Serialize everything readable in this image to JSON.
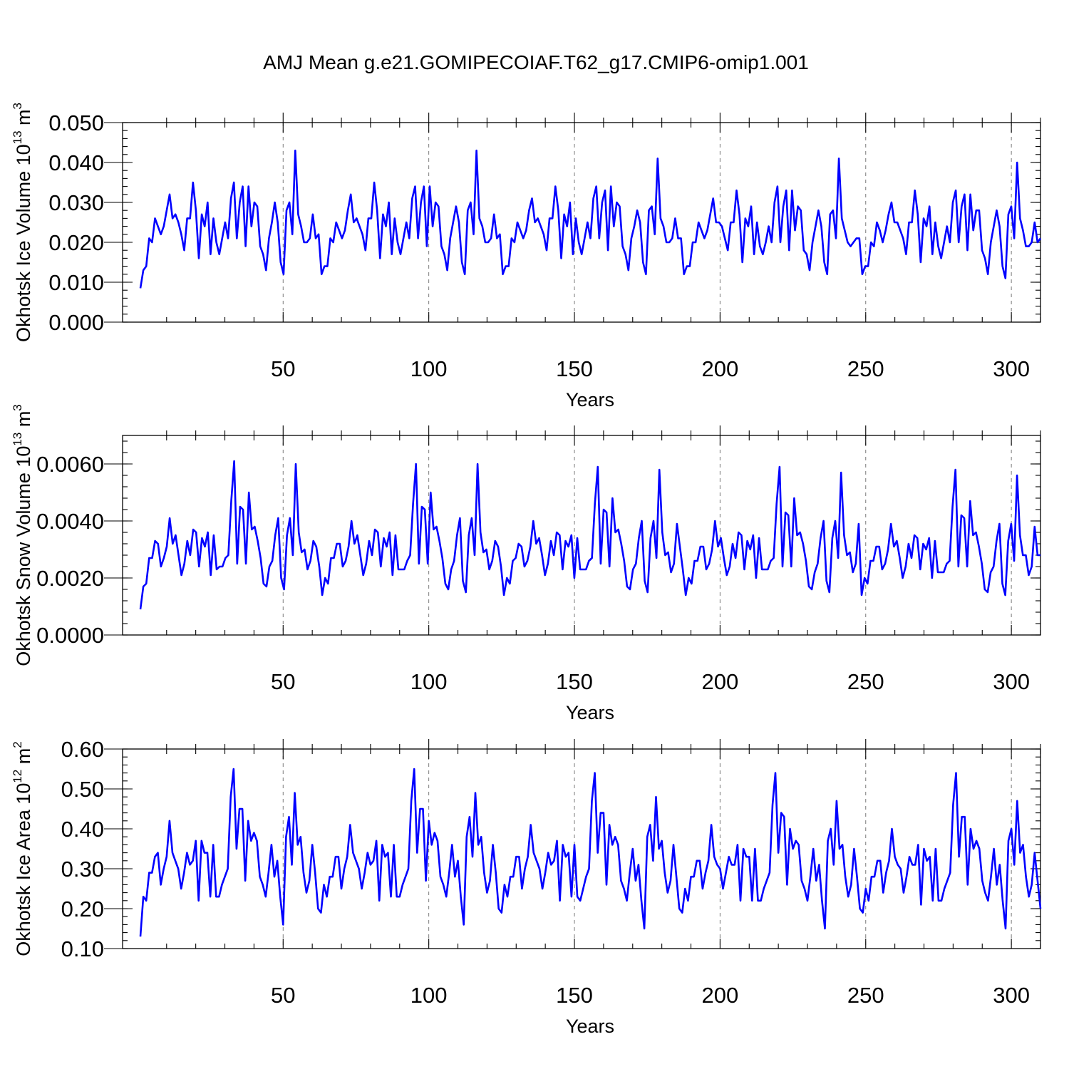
{
  "figure_title": "AMJ Mean g.e21.GOMIPECOIAF.T62_g17.CMIP6-omip1.001",
  "chart_data": [
    {
      "type": "line",
      "ylabel_main": "Okhotsk Ice Volume 10",
      "ylabel_exp": "13",
      "ylabel_unit": " m",
      "ylabel_unit_exp": "3",
      "xlabel": "Years",
      "xlim": [
        1,
        310
      ],
      "ylim": [
        0,
        0.05
      ],
      "x_ticks": [
        "50",
        "100",
        "150",
        "200",
        "250",
        "300"
      ],
      "y_ticks": [
        "0.000",
        "0.010",
        "0.020",
        "0.030",
        "0.040",
        "0.050"
      ],
      "line_color": "#0000ff",
      "values": [
        0.0085,
        0.013,
        0.014,
        0.021,
        0.02,
        0.026,
        0.024,
        0.022,
        0.024,
        0.028,
        0.032,
        0.026,
        0.027,
        0.025,
        0.022,
        0.018,
        0.026,
        0.026,
        0.035,
        0.028,
        0.016,
        0.027,
        0.024,
        0.03,
        0.017,
        0.026,
        0.02,
        0.017,
        0.021,
        0.025,
        0.021,
        0.031,
        0.035,
        0.021,
        0.03,
        0.034,
        0.019,
        0.034,
        0.024,
        0.03,
        0.029,
        0.019,
        0.017,
        0.013,
        0.021,
        0.025,
        0.03,
        0.025,
        0.015,
        0.012,
        0.028,
        0.03,
        0.022,
        0.043,
        0.027,
        0.024,
        0.02,
        0.02,
        0.021,
        0.027,
        0.021,
        0.022,
        0.012,
        0.014,
        0.014,
        0.021,
        0.02,
        0.025,
        0.023,
        0.021,
        0.023,
        0.028,
        0.032,
        0.025,
        0.026,
        0.024,
        0.022,
        0.018,
        0.026,
        0.026,
        0.035,
        0.028,
        0.016,
        0.027,
        0.024,
        0.03,
        0.017,
        0.026,
        0.02,
        0.017,
        0.021,
        0.025,
        0.021,
        0.031,
        0.034,
        0.021,
        0.03,
        0.034,
        0.019,
        0.034,
        0.024,
        0.03,
        0.029,
        0.019,
        0.017,
        0.013,
        0.021,
        0.025,
        0.029,
        0.025,
        0.015,
        0.012,
        0.028,
        0.03,
        0.022,
        0.043,
        0.026,
        0.024,
        0.02,
        0.02,
        0.021,
        0.027,
        0.021,
        0.022,
        0.012,
        0.014,
        0.014,
        0.021,
        0.02,
        0.025,
        0.023,
        0.021,
        0.023,
        0.028,
        0.031,
        0.025,
        0.026,
        0.024,
        0.022,
        0.018,
        0.026,
        0.026,
        0.034,
        0.028,
        0.016,
        0.027,
        0.024,
        0.03,
        0.017,
        0.026,
        0.02,
        0.017,
        0.021,
        0.025,
        0.021,
        0.031,
        0.034,
        0.021,
        0.03,
        0.033,
        0.018,
        0.034,
        0.024,
        0.03,
        0.029,
        0.019,
        0.017,
        0.013,
        0.021,
        0.024,
        0.028,
        0.025,
        0.015,
        0.012,
        0.028,
        0.029,
        0.022,
        0.041,
        0.026,
        0.024,
        0.02,
        0.02,
        0.021,
        0.026,
        0.021,
        0.021,
        0.012,
        0.014,
        0.014,
        0.02,
        0.02,
        0.025,
        0.023,
        0.021,
        0.023,
        0.027,
        0.031,
        0.025,
        0.025,
        0.024,
        0.021,
        0.018,
        0.025,
        0.025,
        0.033,
        0.027,
        0.015,
        0.026,
        0.024,
        0.029,
        0.017,
        0.025,
        0.019,
        0.017,
        0.02,
        0.024,
        0.02,
        0.03,
        0.034,
        0.02,
        0.029,
        0.033,
        0.018,
        0.033,
        0.023,
        0.029,
        0.028,
        0.018,
        0.017,
        0.013,
        0.02,
        0.024,
        0.028,
        0.024,
        0.015,
        0.012,
        0.027,
        0.028,
        0.021,
        0.041,
        0.026,
        0.023,
        0.02,
        0.019,
        0.02,
        0.021,
        0.021,
        0.012,
        0.014,
        0.014,
        0.02,
        0.019,
        0.025,
        0.023,
        0.02,
        0.023,
        0.027,
        0.03,
        0.025,
        0.025,
        0.023,
        0.021,
        0.017,
        0.025,
        0.025,
        0.033,
        0.027,
        0.015,
        0.026,
        0.024,
        0.029,
        0.017,
        0.025,
        0.019,
        0.016,
        0.02,
        0.024,
        0.02,
        0.03,
        0.033,
        0.02,
        0.029,
        0.032,
        0.018,
        0.032,
        0.023,
        0.028,
        0.028,
        0.018,
        0.016,
        0.012,
        0.02,
        0.024,
        0.028,
        0.024,
        0.014,
        0.011,
        0.027,
        0.029,
        0.021,
        0.04,
        0.026,
        0.023,
        0.019,
        0.019,
        0.02,
        0.025,
        0.02,
        0.021
      ]
    },
    {
      "type": "line",
      "ylabel_main": "Okhotsk Snow Volume 10",
      "ylabel_exp": "13",
      "ylabel_unit": " m",
      "ylabel_unit_exp": "3",
      "xlabel": "Years",
      "xlim": [
        1,
        310
      ],
      "ylim": [
        0,
        0.007
      ],
      "x_ticks": [
        "50",
        "100",
        "150",
        "200",
        "250",
        "300"
      ],
      "y_ticks": [
        "0.0000",
        "0.0020",
        "0.0040",
        "0.0060"
      ],
      "line_color": "#0000ff",
      "values": [
        0.0009,
        0.0017,
        0.0018,
        0.0027,
        0.0027,
        0.0033,
        0.0032,
        0.0024,
        0.0027,
        0.0031,
        0.0041,
        0.0032,
        0.0035,
        0.0028,
        0.0021,
        0.0025,
        0.0033,
        0.0028,
        0.0037,
        0.0036,
        0.0024,
        0.0034,
        0.0031,
        0.0036,
        0.0021,
        0.0035,
        0.0023,
        0.0024,
        0.0024,
        0.0027,
        0.0028,
        0.0047,
        0.0061,
        0.0025,
        0.0045,
        0.0044,
        0.0025,
        0.005,
        0.0037,
        0.0038,
        0.0033,
        0.0027,
        0.0018,
        0.0017,
        0.0024,
        0.0026,
        0.0035,
        0.0041,
        0.002,
        0.0016,
        0.0035,
        0.0041,
        0.0028,
        0.006,
        0.0036,
        0.0029,
        0.003,
        0.0023,
        0.0026,
        0.0033,
        0.0031,
        0.0024,
        0.0014,
        0.002,
        0.0018,
        0.0027,
        0.0027,
        0.0032,
        0.0032,
        0.0024,
        0.0026,
        0.0031,
        0.004,
        0.0032,
        0.0035,
        0.0028,
        0.0021,
        0.0025,
        0.0033,
        0.0028,
        0.0037,
        0.0036,
        0.0024,
        0.0034,
        0.0031,
        0.0036,
        0.0021,
        0.0035,
        0.0023,
        0.0023,
        0.0023,
        0.0026,
        0.0028,
        0.0046,
        0.006,
        0.0025,
        0.0045,
        0.0044,
        0.0025,
        0.005,
        0.0037,
        0.0038,
        0.0033,
        0.0027,
        0.0018,
        0.0016,
        0.0023,
        0.0026,
        0.0035,
        0.0041,
        0.0019,
        0.0015,
        0.0035,
        0.0041,
        0.0028,
        0.006,
        0.0036,
        0.0029,
        0.003,
        0.0023,
        0.0026,
        0.0033,
        0.0031,
        0.0024,
        0.0014,
        0.002,
        0.0018,
        0.0026,
        0.0027,
        0.0032,
        0.0031,
        0.0024,
        0.0026,
        0.0031,
        0.004,
        0.0032,
        0.0034,
        0.0028,
        0.0021,
        0.0025,
        0.0033,
        0.0028,
        0.0036,
        0.0035,
        0.0023,
        0.0033,
        0.0031,
        0.0035,
        0.002,
        0.0034,
        0.0023,
        0.0023,
        0.0023,
        0.0026,
        0.0027,
        0.0046,
        0.0059,
        0.0025,
        0.0044,
        0.0043,
        0.0024,
        0.0048,
        0.0036,
        0.0037,
        0.0032,
        0.0026,
        0.0017,
        0.0016,
        0.0023,
        0.0025,
        0.0034,
        0.004,
        0.0019,
        0.0015,
        0.0034,
        0.004,
        0.0027,
        0.0058,
        0.0036,
        0.0028,
        0.0029,
        0.0022,
        0.0025,
        0.0039,
        0.0031,
        0.0023,
        0.0014,
        0.002,
        0.0018,
        0.0026,
        0.0026,
        0.0031,
        0.0031,
        0.0023,
        0.0025,
        0.003,
        0.004,
        0.0031,
        0.0034,
        0.0027,
        0.0021,
        0.0024,
        0.0032,
        0.0027,
        0.0036,
        0.0035,
        0.0023,
        0.0033,
        0.003,
        0.0035,
        0.002,
        0.0034,
        0.0023,
        0.0023,
        0.0023,
        0.0026,
        0.0027,
        0.0046,
        0.0059,
        0.0024,
        0.0043,
        0.0042,
        0.0024,
        0.0048,
        0.0035,
        0.0036,
        0.0032,
        0.0026,
        0.0017,
        0.0016,
        0.0022,
        0.0025,
        0.0034,
        0.004,
        0.0019,
        0.0015,
        0.0034,
        0.004,
        0.0027,
        0.0057,
        0.0035,
        0.0028,
        0.0029,
        0.0022,
        0.0025,
        0.0039,
        0.0014,
        0.002,
        0.0018,
        0.0026,
        0.0026,
        0.0031,
        0.0031,
        0.0023,
        0.0025,
        0.003,
        0.0039,
        0.0031,
        0.0033,
        0.0027,
        0.002,
        0.0024,
        0.0032,
        0.0027,
        0.0035,
        0.0034,
        0.0023,
        0.0032,
        0.003,
        0.0034,
        0.002,
        0.0033,
        0.0022,
        0.0022,
        0.0022,
        0.0025,
        0.0026,
        0.0045,
        0.0058,
        0.0024,
        0.0042,
        0.0041,
        0.0024,
        0.0047,
        0.0035,
        0.0036,
        0.0031,
        0.0025,
        0.0016,
        0.0015,
        0.0022,
        0.0024,
        0.0033,
        0.0039,
        0.0018,
        0.0014,
        0.0033,
        0.0039,
        0.0026,
        0.0056,
        0.0035,
        0.0028,
        0.0028,
        0.0021,
        0.0024,
        0.0038,
        0.0028,
        0.0028
      ]
    },
    {
      "type": "line",
      "ylabel_main": "Okhotsk Ice Area 10",
      "ylabel_exp": "12",
      "ylabel_unit": " m",
      "ylabel_unit_exp": "2",
      "xlabel": "Years",
      "xlim": [
        1,
        310
      ],
      "ylim": [
        0.1,
        0.6
      ],
      "x_ticks": [
        "50",
        "100",
        "150",
        "200",
        "250",
        "300"
      ],
      "y_ticks": [
        "0.10",
        "0.20",
        "0.30",
        "0.40",
        "0.50",
        "0.60"
      ],
      "line_color": "#0000ff",
      "values": [
        0.13,
        0.23,
        0.22,
        0.29,
        0.29,
        0.33,
        0.34,
        0.26,
        0.3,
        0.33,
        0.42,
        0.34,
        0.32,
        0.3,
        0.25,
        0.29,
        0.34,
        0.31,
        0.32,
        0.37,
        0.22,
        0.37,
        0.34,
        0.34,
        0.23,
        0.36,
        0.23,
        0.23,
        0.26,
        0.28,
        0.3,
        0.48,
        0.55,
        0.35,
        0.45,
        0.45,
        0.27,
        0.42,
        0.37,
        0.39,
        0.37,
        0.28,
        0.26,
        0.23,
        0.29,
        0.36,
        0.28,
        0.32,
        0.23,
        0.16,
        0.38,
        0.43,
        0.31,
        0.49,
        0.36,
        0.38,
        0.29,
        0.24,
        0.27,
        0.36,
        0.29,
        0.2,
        0.19,
        0.26,
        0.23,
        0.28,
        0.28,
        0.33,
        0.33,
        0.25,
        0.3,
        0.33,
        0.41,
        0.34,
        0.32,
        0.3,
        0.25,
        0.29,
        0.34,
        0.31,
        0.32,
        0.37,
        0.22,
        0.36,
        0.33,
        0.34,
        0.23,
        0.36,
        0.23,
        0.23,
        0.26,
        0.28,
        0.3,
        0.47,
        0.55,
        0.34,
        0.45,
        0.45,
        0.27,
        0.42,
        0.36,
        0.39,
        0.37,
        0.28,
        0.26,
        0.23,
        0.29,
        0.36,
        0.28,
        0.32,
        0.23,
        0.16,
        0.38,
        0.43,
        0.33,
        0.49,
        0.36,
        0.38,
        0.29,
        0.24,
        0.27,
        0.36,
        0.29,
        0.2,
        0.19,
        0.26,
        0.23,
        0.28,
        0.28,
        0.33,
        0.33,
        0.25,
        0.3,
        0.33,
        0.41,
        0.34,
        0.32,
        0.3,
        0.25,
        0.29,
        0.34,
        0.31,
        0.32,
        0.37,
        0.22,
        0.36,
        0.33,
        0.34,
        0.23,
        0.36,
        0.23,
        0.22,
        0.25,
        0.28,
        0.3,
        0.47,
        0.54,
        0.34,
        0.44,
        0.44,
        0.26,
        0.41,
        0.36,
        0.38,
        0.36,
        0.27,
        0.25,
        0.22,
        0.29,
        0.35,
        0.27,
        0.31,
        0.22,
        0.15,
        0.38,
        0.41,
        0.32,
        0.48,
        0.35,
        0.37,
        0.29,
        0.24,
        0.27,
        0.36,
        0.28,
        0.2,
        0.19,
        0.25,
        0.22,
        0.28,
        0.28,
        0.32,
        0.32,
        0.25,
        0.29,
        0.32,
        0.41,
        0.33,
        0.31,
        0.3,
        0.25,
        0.29,
        0.33,
        0.31,
        0.31,
        0.36,
        0.22,
        0.35,
        0.33,
        0.33,
        0.22,
        0.35,
        0.22,
        0.22,
        0.25,
        0.27,
        0.29,
        0.46,
        0.54,
        0.34,
        0.44,
        0.43,
        0.26,
        0.4,
        0.35,
        0.37,
        0.36,
        0.27,
        0.25,
        0.22,
        0.28,
        0.35,
        0.27,
        0.31,
        0.22,
        0.15,
        0.37,
        0.4,
        0.31,
        0.47,
        0.35,
        0.36,
        0.28,
        0.23,
        0.26,
        0.35,
        0.28,
        0.2,
        0.19,
        0.25,
        0.22,
        0.28,
        0.28,
        0.32,
        0.32,
        0.24,
        0.29,
        0.32,
        0.4,
        0.33,
        0.31,
        0.3,
        0.24,
        0.28,
        0.33,
        0.31,
        0.31,
        0.36,
        0.21,
        0.35,
        0.32,
        0.33,
        0.22,
        0.35,
        0.22,
        0.22,
        0.25,
        0.27,
        0.29,
        0.46,
        0.54,
        0.33,
        0.43,
        0.43,
        0.26,
        0.4,
        0.35,
        0.37,
        0.35,
        0.27,
        0.24,
        0.22,
        0.28,
        0.35,
        0.26,
        0.31,
        0.22,
        0.15,
        0.37,
        0.4,
        0.31,
        0.47,
        0.34,
        0.36,
        0.28,
        0.23,
        0.26,
        0.34,
        0.27,
        0.2
      ]
    }
  ]
}
